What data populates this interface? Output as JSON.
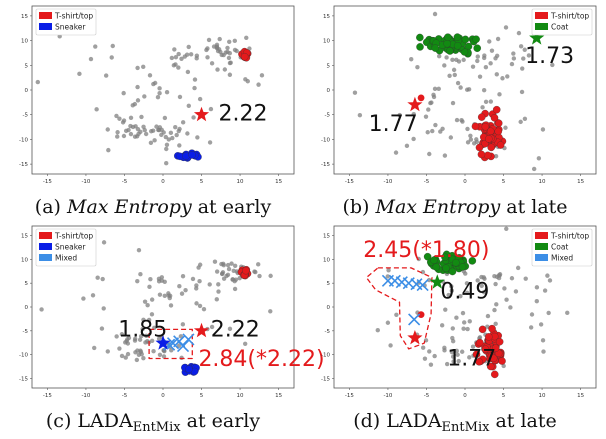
{
  "panels": [
    {
      "id": "a",
      "caption": {
        "pre": "(a) ",
        "em": "Max Entropy",
        "name": "",
        "sub": "",
        "post": " at early"
      },
      "legend": [
        {
          "label": "T-shirt/top",
          "color": "#e41a1c"
        },
        {
          "label": "Sneaker",
          "color": "#0a1ee6"
        }
      ],
      "xticks": [
        "-15",
        "-10",
        "-5",
        "0",
        "5",
        "10",
        "15"
      ],
      "yticks": [
        "15",
        "10",
        "5",
        "0",
        "-5",
        "-10",
        "-15"
      ],
      "stars": [
        {
          "x": 5,
          "y": -5,
          "color": "#e41a1c"
        }
      ],
      "crosses": [],
      "annotations": [
        {
          "text": "2.22",
          "x": 7.2,
          "y": -6.2,
          "color": "#111111",
          "size": 22
        }
      ]
    },
    {
      "id": "b",
      "caption": {
        "pre": "(b) ",
        "em": "Max Entropy",
        "name": "",
        "sub": "",
        "post": " at late"
      },
      "legend": [
        {
          "label": "T-shirt/top",
          "color": "#e41a1c"
        },
        {
          "label": "Coat",
          "color": "#128a12"
        }
      ],
      "xticks": [
        "-15",
        "-10",
        "-5",
        "0",
        "5",
        "10",
        "15"
      ],
      "yticks": [
        "15",
        "10",
        "5",
        "0",
        "-5",
        "-10",
        "-15"
      ],
      "stars": [
        {
          "x": 9.3,
          "y": 10.5,
          "color": "#128a12"
        },
        {
          "x": -6.5,
          "y": -3,
          "color": "#e41a1c"
        }
      ],
      "crosses": [],
      "annotations": [
        {
          "text": "1.73",
          "x": 7.8,
          "y": 5.5,
          "color": "#111111",
          "size": 22
        },
        {
          "text": "1.77",
          "x": -12.5,
          "y": -8.3,
          "color": "#111111",
          "size": 22
        }
      ]
    },
    {
      "id": "c",
      "caption": {
        "pre": "(c) ",
        "em": "",
        "name": "LADA",
        "sub": "EntMix",
        "post": " at early"
      },
      "legend": [
        {
          "label": "T-shirt/top",
          "color": "#e41a1c"
        },
        {
          "label": "Sneaker",
          "color": "#0a1ee6"
        },
        {
          "label": "Mixed",
          "color": "#3c8ee6"
        }
      ],
      "xticks": [
        "-15",
        "-10",
        "-5",
        "0",
        "5",
        "10",
        "15"
      ],
      "yticks": [
        "15",
        "10",
        "5",
        "0",
        "-5",
        "-10",
        "-15"
      ],
      "stars": [
        {
          "x": 5,
          "y": -5,
          "color": "#e41a1c"
        },
        {
          "x": 0,
          "y": -7.6,
          "color": "#0a1ee6"
        }
      ],
      "crosses": [
        {
          "x": 1.3,
          "y": -7.6
        },
        {
          "x": 2.1,
          "y": -7.2
        },
        {
          "x": 2.6,
          "y": -8.2
        },
        {
          "x": 3.3,
          "y": -6.8
        },
        {
          "x": 0.8,
          "y": -7.9
        }
      ],
      "annotations": [
        {
          "text": "1.85",
          "x": -5.8,
          "y": -6.2,
          "color": "#111111",
          "size": 22
        },
        {
          "text": "2.22",
          "x": 6.2,
          "y": -6.2,
          "color": "#111111",
          "size": 22
        },
        {
          "text": "2.84(*2.22)",
          "x": 4.6,
          "y": -12.4,
          "color": "#e41a1c",
          "size": 22
        }
      ]
    },
    {
      "id": "d",
      "caption": {
        "pre": "(d) ",
        "em": "",
        "name": "LADA",
        "sub": "EntMix",
        "post": " at late"
      },
      "legend": [
        {
          "label": "T-shirt/top",
          "color": "#e41a1c"
        },
        {
          "label": "Coat",
          "color": "#128a12"
        },
        {
          "label": "Mixed",
          "color": "#3c8ee6"
        }
      ],
      "xticks": [
        "-15",
        "-10",
        "-5",
        "0",
        "5",
        "10",
        "15"
      ],
      "yticks": [
        "15",
        "10",
        "5",
        "0",
        "-5",
        "-10",
        "-15"
      ],
      "stars": [
        {
          "x": -3.6,
          "y": 5.2,
          "color": "#128a12"
        },
        {
          "x": -6.5,
          "y": -6.5,
          "color": "#e41a1c"
        }
      ],
      "crosses": [
        {
          "x": -10,
          "y": 5.5
        },
        {
          "x": -9.1,
          "y": 5.5
        },
        {
          "x": -8.2,
          "y": 5.2
        },
        {
          "x": -7.3,
          "y": 5.0
        },
        {
          "x": -6.3,
          "y": 4.8
        },
        {
          "x": -5.5,
          "y": 4.6
        },
        {
          "x": -6.6,
          "y": -2.6
        }
      ],
      "annotations": [
        {
          "text": "2.45(*1.80)",
          "x": -13.2,
          "y": 10.5,
          "color": "#e41a1c",
          "size": 22
        },
        {
          "text": "0.49",
          "x": -3.2,
          "y": 1.8,
          "color": "#111111",
          "size": 22
        },
        {
          "text": "1.77",
          "x": -2.3,
          "y": -12.3,
          "color": "#111111",
          "size": 22
        }
      ]
    }
  ]
}
